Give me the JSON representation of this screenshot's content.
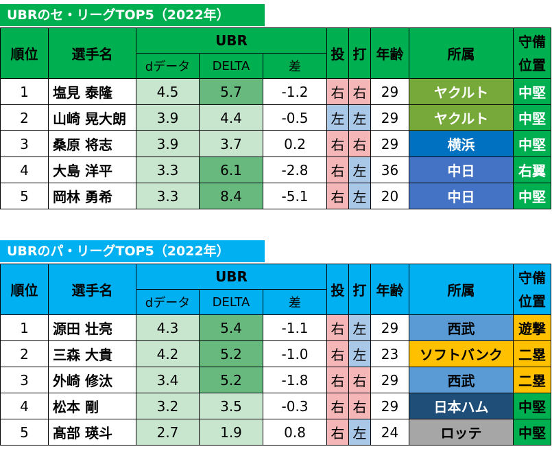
{
  "central": {
    "title": "UBRのセ・リーグTOP5（2022年）",
    "title_color": "#00b050",
    "header_color": "#00b050",
    "headers": {
      "rank": "順位",
      "name": "選手名",
      "ubr": "UBR",
      "d_data": "dデータ",
      "delta": "DELTA",
      "diff": "差",
      "throw": "投",
      "bat": "打",
      "age": "年齢",
      "team": "所属",
      "pos_line1": "守備",
      "pos_line2": "位置"
    },
    "rows": [
      {
        "rank": "1",
        "name": "塩見 泰隆",
        "d": "4.5",
        "delta": "5.7",
        "diff": "-1.2",
        "throw": "右",
        "bat": "右",
        "age": "29",
        "team": "ヤクルト",
        "team_color": "#77a83a",
        "team_text": "#ffffff",
        "pos": "中堅",
        "pos_color": "#00b050",
        "pos_text": "#ffffff",
        "delta_shade": "mid",
        "d_shade": "light"
      },
      {
        "rank": "2",
        "name": "山崎 晃大朗",
        "d": "3.9",
        "delta": "4.4",
        "diff": "-0.5",
        "throw": "左",
        "bat": "左",
        "age": "29",
        "team": "ヤクルト",
        "team_color": "#77a83a",
        "team_text": "#ffffff",
        "pos": "中堅",
        "pos_color": "#00b050",
        "pos_text": "#ffffff",
        "delta_shade": "light",
        "d_shade": "light"
      },
      {
        "rank": "3",
        "name": "桑原 将志",
        "d": "3.9",
        "delta": "3.7",
        "diff": "0.2",
        "throw": "右",
        "bat": "右",
        "age": "29",
        "team": "横浜",
        "team_color": "#0070c0",
        "team_text": "#ffffff",
        "pos": "中堅",
        "pos_color": "#00b050",
        "pos_text": "#ffffff",
        "delta_shade": "light",
        "d_shade": "light"
      },
      {
        "rank": "4",
        "name": "大島 洋平",
        "d": "3.3",
        "delta": "6.1",
        "diff": "-2.8",
        "throw": "右",
        "bat": "左",
        "age": "36",
        "team": "中日",
        "team_color": "#4472c4",
        "team_text": "#ffffff",
        "pos": "右翼",
        "pos_color": "#00b050",
        "pos_text": "#ffffff",
        "delta_shade": "mid",
        "d_shade": "light"
      },
      {
        "rank": "5",
        "name": "岡林 勇希",
        "d": "3.3",
        "delta": "8.4",
        "diff": "-5.1",
        "throw": "右",
        "bat": "左",
        "age": "20",
        "team": "中日",
        "team_color": "#4472c4",
        "team_text": "#ffffff",
        "pos": "中堅",
        "pos_color": "#00b050",
        "pos_text": "#ffffff",
        "delta_shade": "mid",
        "d_shade": "light"
      }
    ]
  },
  "pacific": {
    "title": "UBRのパ・リーグTOP5（2022年）",
    "title_color": "#00b0f0",
    "header_color": "#00b0f0",
    "headers": {
      "rank": "順位",
      "name": "選手名",
      "ubr": "UBR",
      "d_data": "dデータ",
      "delta": "DELTA",
      "diff": "差",
      "throw": "投",
      "bat": "打",
      "age": "年齢",
      "team": "所属",
      "pos_line1": "守備",
      "pos_line2": "位置"
    },
    "rows": [
      {
        "rank": "1",
        "name": "源田 壮亮",
        "d": "4.3",
        "delta": "5.4",
        "diff": "-1.1",
        "throw": "右",
        "bat": "左",
        "age": "29",
        "team": "西武",
        "team_color": "#5b9bd5",
        "team_text": "#000000",
        "pos": "遊撃",
        "pos_color": "#ffc000",
        "pos_text": "#000000",
        "delta_shade": "mid",
        "d_shade": "light"
      },
      {
        "rank": "2",
        "name": "三森 大貴",
        "d": "4.2",
        "delta": "5.2",
        "diff": "-1.0",
        "throw": "右",
        "bat": "左",
        "age": "23",
        "team": "ソフトバンク",
        "team_color": "#ffc000",
        "team_text": "#000000",
        "pos": "二塁",
        "pos_color": "#ffc000",
        "pos_text": "#000000",
        "delta_shade": "mid",
        "d_shade": "light"
      },
      {
        "rank": "3",
        "name": "外崎 修汰",
        "d": "3.4",
        "delta": "5.2",
        "diff": "-1.8",
        "throw": "右",
        "bat": "右",
        "age": "29",
        "team": "西武",
        "team_color": "#5b9bd5",
        "team_text": "#000000",
        "pos": "二塁",
        "pos_color": "#ffc000",
        "pos_text": "#000000",
        "delta_shade": "mid",
        "d_shade": "light"
      },
      {
        "rank": "4",
        "name": "松本 剛",
        "d": "3.2",
        "delta": "3.5",
        "diff": "-0.3",
        "throw": "右",
        "bat": "右",
        "age": "29",
        "team": "日本ハム",
        "team_color": "#1f4e79",
        "team_text": "#ffffff",
        "pos": "中堅",
        "pos_color": "#00b050",
        "pos_text": "#000000",
        "delta_shade": "light",
        "d_shade": "light"
      },
      {
        "rank": "5",
        "name": "髙部 瑛斗",
        "d": "2.7",
        "delta": "1.9",
        "diff": "0.8",
        "throw": "右",
        "bat": "左",
        "age": "24",
        "team": "ロッテ",
        "team_color": "#a6a6a6",
        "team_text": "#000000",
        "pos": "中堅",
        "pos_color": "#00b050",
        "pos_text": "#000000",
        "delta_shade": "light",
        "d_shade": "light"
      }
    ]
  },
  "colors": {
    "right_hand": "#f4b6b6",
    "left_hand": "#a9c8e8",
    "light_green": "#c7e6cd",
    "mid_green": "#68b97d"
  }
}
